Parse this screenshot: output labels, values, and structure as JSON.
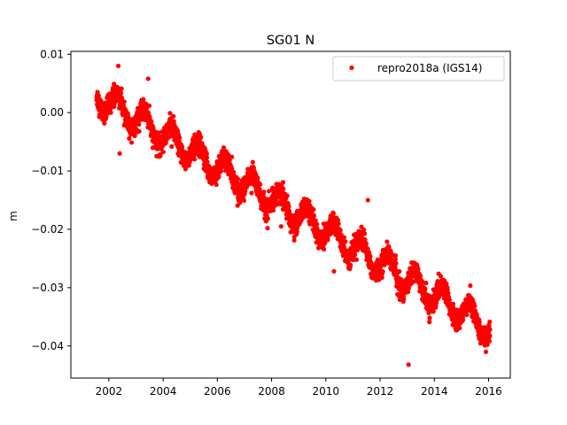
{
  "chart_data": {
    "type": "scatter",
    "title": "SG01 N",
    "xlabel": "",
    "ylabel": "m",
    "xlim": [
      2000.6,
      2016.8
    ],
    "ylim": [
      -0.0455,
      0.0105
    ],
    "xticks": [
      2002,
      2004,
      2006,
      2008,
      2010,
      2012,
      2014,
      2016
    ],
    "xtick_labels": [
      "2002",
      "2004",
      "2006",
      "2008",
      "2010",
      "2012",
      "2014",
      "2016"
    ],
    "yticks": [
      0.01,
      0.0,
      -0.01,
      -0.02,
      -0.03,
      -0.04
    ],
    "ytick_labels": [
      "0.01",
      "0.00",
      "−0.01",
      "−0.02",
      "−0.03",
      "−0.04"
    ],
    "grid": false,
    "legend_position": "top-right",
    "series": [
      {
        "name": "repro2018a (IGS14)",
        "color": "#ff0000",
        "marker": "circle",
        "start_year": 2001.55,
        "end_year": 2016.05,
        "trend_start_value": 0.003,
        "trend_end_value": -0.037,
        "seasonal_amplitude": 0.0022,
        "scatter_spread": 0.0012,
        "outliers": [
          {
            "x": 2002.35,
            "y": 0.008
          },
          {
            "x": 2002.4,
            "y": -0.007
          },
          {
            "x": 2003.45,
            "y": 0.0058
          },
          {
            "x": 2007.85,
            "y": -0.0198
          },
          {
            "x": 2008.35,
            "y": -0.0195
          },
          {
            "x": 2010.3,
            "y": -0.0272
          },
          {
            "x": 2011.55,
            "y": -0.015
          },
          {
            "x": 2013.05,
            "y": -0.0432
          },
          {
            "x": 2015.9,
            "y": -0.041
          }
        ]
      }
    ]
  }
}
